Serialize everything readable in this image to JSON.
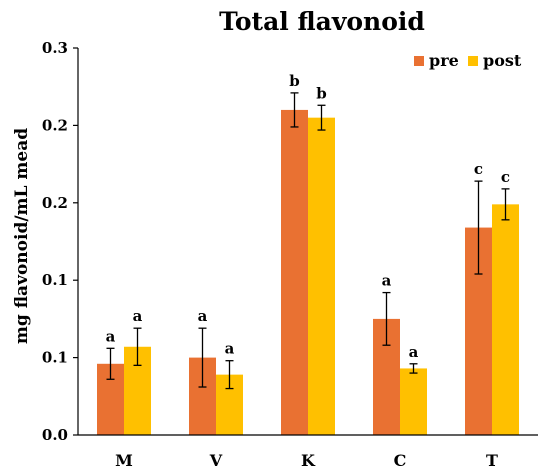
{
  "chart_data": {
    "type": "bar",
    "title": "Total flavonoid",
    "xlabel": "",
    "ylabel": "mg flavonoid/mL mead",
    "categories": [
      "M",
      "V",
      "K",
      "C",
      "T"
    ],
    "y_tick_labels": [
      "0.0",
      "0.1",
      "0.1",
      "0.2",
      "0.2",
      "0.3"
    ],
    "y_tick_values": [
      0,
      0.05,
      0.1,
      0.15,
      0.2,
      0.25
    ],
    "ylim": [
      0,
      0.25
    ],
    "grid": false,
    "legend_position": "top-right",
    "series": [
      {
        "name": "pre",
        "color": "#E97132",
        "values": [
          0.046,
          0.05,
          0.21,
          0.075,
          0.134
        ],
        "errors": [
          0.01,
          0.019,
          0.011,
          0.017,
          0.03
        ],
        "labels": [
          "a",
          "a",
          "b",
          "a",
          "c"
        ]
      },
      {
        "name": "post",
        "color": "#FFC000",
        "values": [
          0.057,
          0.039,
          0.205,
          0.043,
          0.149
        ],
        "errors": [
          0.012,
          0.009,
          0.008,
          0.003,
          0.01
        ],
        "labels": [
          "a",
          "a",
          "b",
          "a",
          "c"
        ]
      }
    ]
  }
}
